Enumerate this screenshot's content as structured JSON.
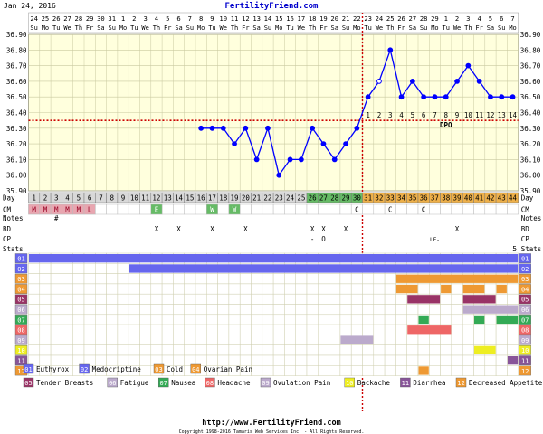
{
  "header": {
    "date": "Jan 24, 2016",
    "site": "FertilityFriend.com"
  },
  "footer": {
    "url": "http://www.FertilityFriend.com",
    "copyright": "Copyright 1998-2016 Tamaris Web Services Inc. - All Rights Reserved."
  },
  "chart_data": {
    "type": "line",
    "title": "",
    "xlabel": "",
    "ylabel": "",
    "ylim": [
      35.9,
      36.9
    ],
    "y_ticks": [
      "36.90",
      "36.80",
      "36.70",
      "36.60",
      "36.50",
      "36.40",
      "36.30",
      "36.20",
      "36.10",
      "36.00",
      "35.90"
    ],
    "date_numbers": [
      "24",
      "25",
      "26",
      "27",
      "28",
      "29",
      "30",
      "31",
      "1",
      "2",
      "3",
      "4",
      "5",
      "6",
      "7",
      "8",
      "9",
      "10",
      "11",
      "12",
      "13",
      "14",
      "15",
      "16",
      "17",
      "18",
      "19",
      "20",
      "21",
      "22",
      "23",
      "24",
      "25",
      "26",
      "27",
      "28",
      "29",
      "1",
      "2",
      "3",
      "4",
      "5",
      "6",
      "7"
    ],
    "weekdays": [
      "Su",
      "Mo",
      "Tu",
      "We",
      "Th",
      "Fr",
      "Sa",
      "Su",
      "Mo",
      "Tu",
      "We",
      "Th",
      "Fr",
      "Sa",
      "Su",
      "Mo",
      "Tu",
      "We",
      "Th",
      "Fr",
      "Sa",
      "Su",
      "Mo",
      "Tu",
      "We",
      "Th",
      "Fr",
      "Sa",
      "Su",
      "Mo",
      "Tu",
      "We",
      "Th",
      "Fr",
      "Sa",
      "Su",
      "Mo",
      "Tu",
      "We",
      "Th",
      "Fr",
      "Sa",
      "Su",
      "Mo"
    ],
    "cycle_days": [
      1,
      2,
      3,
      4,
      5,
      6,
      7,
      8,
      9,
      10,
      11,
      12,
      13,
      14,
      15,
      16,
      17,
      18,
      19,
      20,
      21,
      22,
      23,
      24,
      25,
      26,
      27,
      28,
      29,
      30,
      31,
      32,
      33,
      34,
      35,
      36,
      37,
      38,
      39,
      40,
      41,
      42,
      43,
      44
    ],
    "series": [
      {
        "values": [
          null,
          null,
          null,
          null,
          null,
          null,
          null,
          null,
          null,
          null,
          null,
          null,
          null,
          null,
          null,
          36.3,
          36.3,
          36.3,
          36.2,
          36.3,
          36.1,
          36.3,
          36.0,
          36.1,
          36.1,
          36.3,
          36.2,
          36.1,
          36.2,
          36.3,
          36.5,
          36.6,
          36.8,
          36.5,
          36.6,
          36.5,
          36.5,
          36.5,
          36.6,
          36.7,
          36.6,
          36.5,
          36.5,
          36.5
        ]
      }
    ],
    "open_points_days": [
      32
    ],
    "coverline": 36.35,
    "ovulation_day": 30,
    "dpo_labels": [
      "1",
      "2",
      "3",
      "4",
      "5",
      "6",
      "7",
      "8",
      "9",
      "10",
      "11",
      "12",
      "13",
      "14"
    ],
    "dpo_label": "DPO",
    "period_days": [
      1,
      2,
      3,
      4,
      5
    ],
    "period_marks": [
      "M",
      "M",
      "M",
      "M",
      "M",
      "L"
    ],
    "fertile_days": [
      26,
      27,
      28,
      29,
      30
    ],
    "luteal_days": [
      31,
      32,
      33,
      34,
      35,
      36,
      37,
      38,
      39,
      40,
      41,
      42,
      43,
      44
    ],
    "colors": {
      "temp_line": "#0000ff",
      "coverline": "#cc0000",
      "plot_bg": "#ffffdd",
      "period": "#e8a6b0",
      "fertile": "#66bb66",
      "luteal": "#eeb04a",
      "grid": "#c9c9a0"
    },
    "row_labels": [
      "Day",
      "CM",
      "Notes",
      "BD",
      "CP",
      "Stats"
    ],
    "cm_marks": [
      {
        "day": 12,
        "text": "E",
        "color": "#66bb66"
      },
      {
        "day": 17,
        "text": "W",
        "color": "#66bb66"
      },
      {
        "day": 19,
        "text": "W",
        "color": "#66bb66"
      },
      {
        "day": 30,
        "text": "C",
        "color": ""
      },
      {
        "day": 33,
        "text": "C",
        "color": ""
      },
      {
        "day": 36,
        "text": "C",
        "color": ""
      }
    ],
    "notes_marks": [
      {
        "day": 3,
        "text": "#"
      }
    ],
    "bd_marks": [
      {
        "day": 12,
        "text": "X"
      },
      {
        "day": 14,
        "text": "X"
      },
      {
        "day": 17,
        "text": "X"
      },
      {
        "day": 20,
        "text": "X"
      },
      {
        "day": 26,
        "text": "X"
      },
      {
        "day": 27,
        "text": "X"
      },
      {
        "day": 29,
        "text": "X"
      },
      {
        "day": 39,
        "text": "X"
      }
    ],
    "cp_marks": [
      {
        "day": 26,
        "text": "-"
      },
      {
        "day": 27,
        "text": "O"
      },
      {
        "day": 37,
        "text": "LF-"
      }
    ],
    "stats_value": "5",
    "legend": [
      {
        "code": "01",
        "label": "Euthyrox",
        "color": "#6666ee"
      },
      {
        "code": "02",
        "label": "Medocriptine",
        "color": "#6666ee"
      },
      {
        "code": "03",
        "label": "Cold",
        "color": "#ee9933"
      },
      {
        "code": "04",
        "label": "Ovarian Pain",
        "color": "#ee9933"
      },
      {
        "code": "05",
        "label": "Tender Breasts",
        "color": "#993366"
      },
      {
        "code": "06",
        "label": "Fatigue",
        "color": "#bbaacc"
      },
      {
        "code": "07",
        "label": "Nausea",
        "color": "#33aa55"
      },
      {
        "code": "08",
        "label": "Headache",
        "color": "#ee6666"
      },
      {
        "code": "09",
        "label": "Ovulation Pain",
        "color": "#bbaacc"
      },
      {
        "code": "10",
        "label": "Backache",
        "color": "#eeee22"
      },
      {
        "code": "11",
        "label": "Diarrhea",
        "color": "#885599"
      },
      {
        "code": "12",
        "label": "Decreased Appetite",
        "color": "#ee9933"
      }
    ],
    "symptom_rows": [
      {
        "code": "01",
        "spans": [
          [
            1,
            44
          ]
        ]
      },
      {
        "code": "02",
        "spans": [
          [
            10,
            44
          ]
        ]
      },
      {
        "code": "03",
        "spans": [
          [
            34,
            44
          ]
        ]
      },
      {
        "code": "04",
        "spans": [
          [
            34,
            35
          ],
          [
            38,
            38
          ],
          [
            40,
            41
          ],
          [
            43,
            43
          ]
        ]
      },
      {
        "code": "05",
        "spans": [
          [
            35,
            37
          ],
          [
            40,
            42
          ]
        ]
      },
      {
        "code": "06",
        "spans": [
          [
            40,
            44
          ]
        ]
      },
      {
        "code": "07",
        "spans": [
          [
            36,
            36
          ],
          [
            41,
            41
          ],
          [
            43,
            44
          ]
        ]
      },
      {
        "code": "08",
        "spans": [
          [
            35,
            38
          ]
        ]
      },
      {
        "code": "09",
        "spans": [
          [
            29,
            31
          ]
        ]
      },
      {
        "code": "10",
        "spans": [
          [
            41,
            42
          ]
        ]
      },
      {
        "code": "11",
        "spans": [
          [
            44,
            44
          ]
        ]
      },
      {
        "code": "12",
        "spans": [
          [
            36,
            36
          ]
        ]
      }
    ]
  }
}
